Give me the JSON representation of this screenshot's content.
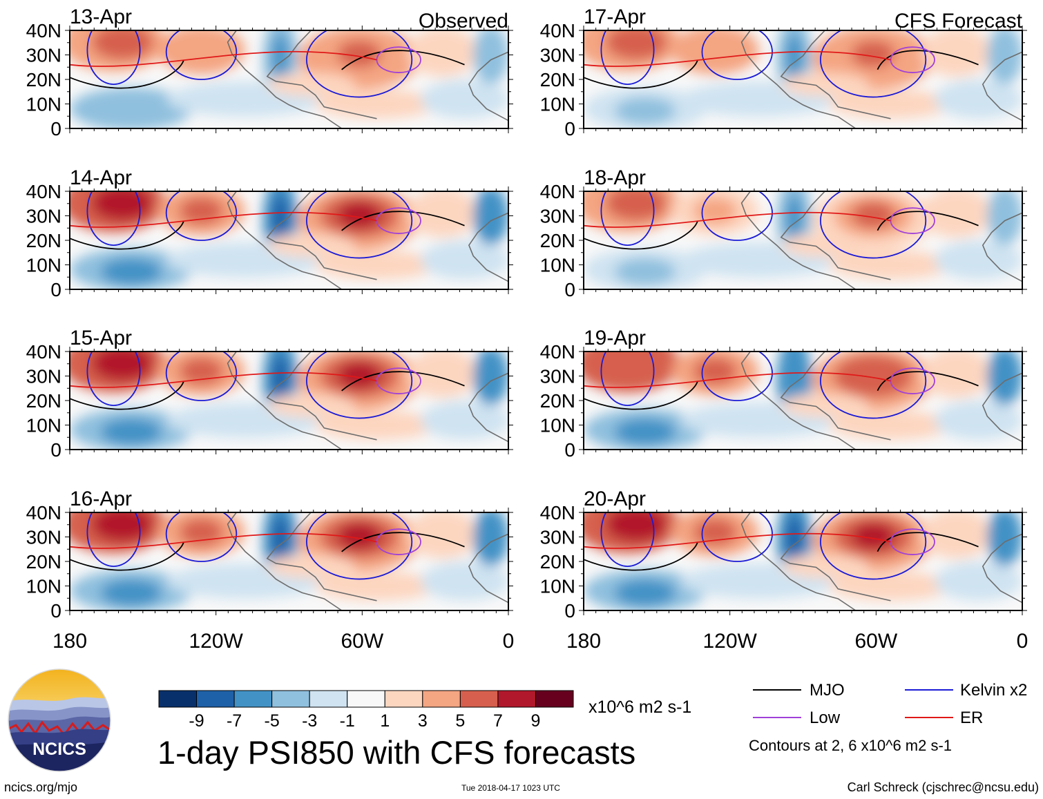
{
  "colors": {
    "frame": "#000000",
    "coast": "#6d6d6d",
    "mjo": "#000000",
    "kelvin": "#1a1ad6",
    "low": "#a040d8",
    "er": "#e01818",
    "scale": [
      "#08306b",
      "#1f61a8",
      "#4292c6",
      "#8fc0de",
      "#cfe3f1",
      "#f8f8f8",
      "#fdd6c0",
      "#f4a582",
      "#d6604d",
      "#b2182b",
      "#67001f"
    ]
  },
  "panels": {
    "observed_label": "Observed",
    "forecast_label": "CFS Forecast",
    "left": [
      {
        "date": "13-Apr",
        "intensity": 0.8
      },
      {
        "date": "14-Apr",
        "intensity": 1.0
      },
      {
        "date": "15-Apr",
        "intensity": 1.05
      },
      {
        "date": "16-Apr",
        "intensity": 0.95
      }
    ],
    "right": [
      {
        "date": "17-Apr",
        "intensity": 0.75
      },
      {
        "date": "18-Apr",
        "intensity": 0.7
      },
      {
        "date": "19-Apr",
        "intensity": 0.85
      },
      {
        "date": "20-Apr",
        "intensity": 0.9
      }
    ]
  },
  "axes": {
    "lat_labels": [
      "40N",
      "30N",
      "20N",
      "10N",
      "0"
    ],
    "lon_labels": [
      "180",
      "120W",
      "60W",
      "0"
    ]
  },
  "colorbar": {
    "tick_labels": [
      "-9",
      "-7",
      "-5",
      "-3",
      "-1",
      "1",
      "3",
      "5",
      "7",
      "9"
    ],
    "units": "x10^6 m2 s-1"
  },
  "legend": {
    "items": [
      {
        "label": "MJO",
        "color": "#000000"
      },
      {
        "label": "Kelvin x2",
        "color": "#1a1ad6"
      },
      {
        "label": "Low",
        "color": "#a040d8"
      },
      {
        "label": "ER",
        "color": "#e01818"
      }
    ],
    "contours_note": "Contours at 2, 6 x10^6 m2 s-1"
  },
  "title": "1-day PSI850 with CFS forecasts",
  "logo_text": "NCICS",
  "footer": {
    "source": "ncics.org/mjo",
    "timestamp": "Tue 2018-04-17 1023 UTC",
    "credit": "Carl Schreck (cjschrec@ncsu.edu)"
  }
}
